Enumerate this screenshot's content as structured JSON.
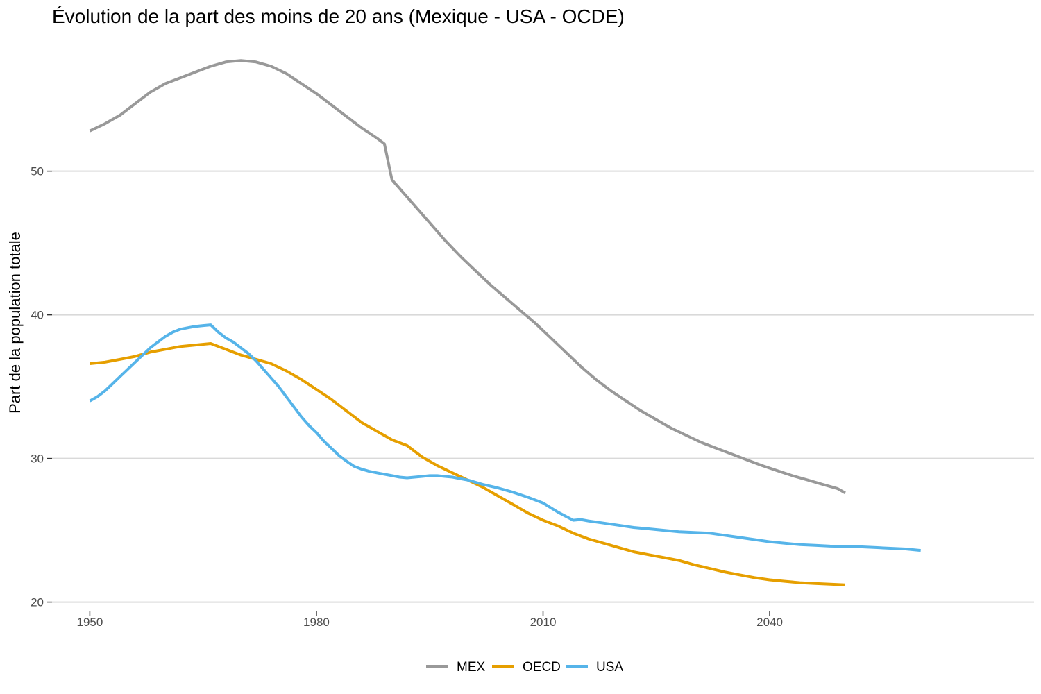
{
  "chart_data": {
    "type": "line",
    "title": "Évolution de la part des moins de 20 ans (Mexique - USA - OCDE)",
    "xlabel": "",
    "ylabel": "Part de la population totale",
    "xlim": [
      1945,
      2075
    ],
    "ylim": [
      19.4,
      59.5
    ],
    "x_ticks": [
      1950,
      1980,
      2010,
      2040
    ],
    "y_ticks": [
      20,
      30,
      40,
      50
    ],
    "grid": "horizontal",
    "legend_position": "bottom",
    "series": [
      {
        "name": "MEX",
        "color": "#999999",
        "x": [
          1950,
          1952,
          1954,
          1956,
          1958,
          1960,
          1962,
          1964,
          1966,
          1968,
          1970,
          1972,
          1974,
          1976,
          1978,
          1980,
          1982,
          1984,
          1986,
          1988,
          1989,
          1990,
          1991,
          1993,
          1995,
          1997,
          1999,
          2001,
          2003,
          2005,
          2007,
          2009,
          2011,
          2013,
          2015,
          2017,
          2019,
          2021,
          2023,
          2025,
          2027,
          2029,
          2031,
          2033,
          2035,
          2037,
          2039,
          2041,
          2043,
          2045,
          2047,
          2049,
          2050
        ],
        "y": [
          52.8,
          53.3,
          53.9,
          54.7,
          55.5,
          56.1,
          56.5,
          56.9,
          57.3,
          57.6,
          57.7,
          57.6,
          57.3,
          56.8,
          56.1,
          55.4,
          54.6,
          53.8,
          53.0,
          52.3,
          51.9,
          49.4,
          48.8,
          47.6,
          46.4,
          45.2,
          44.1,
          43.1,
          42.1,
          41.2,
          40.3,
          39.4,
          38.4,
          37.4,
          36.4,
          35.5,
          34.7,
          34.0,
          33.3,
          32.7,
          32.1,
          31.6,
          31.1,
          30.7,
          30.3,
          29.9,
          29.5,
          29.15,
          28.8,
          28.5,
          28.2,
          27.9,
          27.6
        ]
      },
      {
        "name": "OECD",
        "color": "#E69F00",
        "x": [
          1950,
          1952,
          1954,
          1956,
          1958,
          1960,
          1962,
          1964,
          1966,
          1968,
          1970,
          1972,
          1974,
          1976,
          1978,
          1980,
          1982,
          1984,
          1986,
          1988,
          1989,
          1990,
          1992,
          1994,
          1996,
          1998,
          2000,
          2002,
          2004,
          2006,
          2008,
          2010,
          2012,
          2014,
          2016,
          2018,
          2020,
          2022,
          2024,
          2026,
          2028,
          2030,
          2032,
          2034,
          2036,
          2038,
          2040,
          2042,
          2044,
          2046,
          2048,
          2050
        ],
        "y": [
          36.6,
          36.7,
          36.9,
          37.1,
          37.4,
          37.6,
          37.8,
          37.9,
          38.0,
          37.6,
          37.2,
          36.9,
          36.6,
          36.1,
          35.5,
          34.8,
          34.1,
          33.3,
          32.5,
          31.9,
          31.6,
          31.3,
          30.9,
          30.1,
          29.5,
          29.0,
          28.5,
          28.0,
          27.4,
          26.8,
          26.2,
          25.7,
          25.3,
          24.8,
          24.4,
          24.1,
          23.8,
          23.5,
          23.3,
          23.1,
          22.9,
          22.6,
          22.35,
          22.1,
          21.9,
          21.7,
          21.55,
          21.45,
          21.35,
          21.3,
          21.25,
          21.2
        ]
      },
      {
        "name": "USA",
        "color": "#56B4E9",
        "x": [
          1950,
          1951,
          1952,
          1953,
          1954,
          1955,
          1956,
          1957,
          1958,
          1959,
          1960,
          1961,
          1962,
          1963,
          1964,
          1965,
          1966,
          1967,
          1968,
          1969,
          1970,
          1971,
          1972,
          1973,
          1974,
          1975,
          1976,
          1977,
          1978,
          1979,
          1980,
          1981,
          1982,
          1983,
          1984,
          1985,
          1986,
          1987,
          1988,
          1989,
          1990,
          1991,
          1992,
          1993,
          1994,
          1995,
          1996,
          1997,
          1998,
          1999,
          2000,
          2002,
          2004,
          2006,
          2008,
          2010,
          2012,
          2014,
          2015,
          2016,
          2018,
          2020,
          2022,
          2024,
          2026,
          2028,
          2030,
          2032,
          2034,
          2036,
          2038,
          2040,
          2042,
          2044,
          2046,
          2048,
          2050,
          2052,
          2054,
          2056,
          2058,
          2060
        ],
        "y": [
          34.0,
          34.3,
          34.7,
          35.2,
          35.7,
          36.2,
          36.7,
          37.2,
          37.7,
          38.1,
          38.5,
          38.8,
          39.0,
          39.1,
          39.2,
          39.25,
          39.3,
          38.8,
          38.4,
          38.1,
          37.7,
          37.3,
          36.8,
          36.2,
          35.6,
          35.0,
          34.3,
          33.6,
          32.9,
          32.3,
          31.8,
          31.2,
          30.7,
          30.2,
          29.8,
          29.45,
          29.25,
          29.1,
          29.0,
          28.9,
          28.8,
          28.7,
          28.65,
          28.7,
          28.75,
          28.8,
          28.8,
          28.75,
          28.7,
          28.6,
          28.5,
          28.2,
          27.95,
          27.65,
          27.3,
          26.9,
          26.25,
          25.7,
          25.75,
          25.65,
          25.5,
          25.35,
          25.2,
          25.1,
          25.0,
          24.9,
          24.85,
          24.8,
          24.65,
          24.5,
          24.35,
          24.2,
          24.1,
          24.0,
          23.95,
          23.9,
          23.88,
          23.85,
          23.8,
          23.75,
          23.7,
          23.6
        ]
      }
    ]
  }
}
